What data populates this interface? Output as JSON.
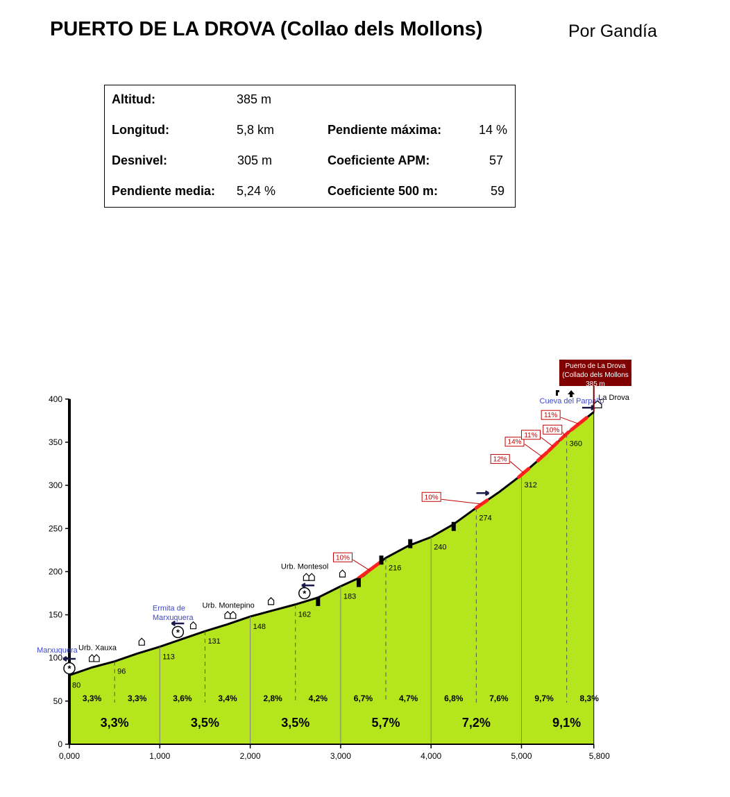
{
  "title": "PUERTO DE LA DROVA (Collao dels Mollons)",
  "subtitle": "Por Gandía",
  "stats": {
    "altitud_label": "Altitud:",
    "altitud": "385 m",
    "longitud_label": "Longitud:",
    "longitud": "5,8 km",
    "desnivel_label": "Desnivel:",
    "desnivel": "305 m",
    "pmedia_label": "Pendiente media:",
    "pmedia": "5,24 %",
    "pmax_label": "Pendiente máxima:",
    "pmax": "14 %",
    "apm_label": "Coeficiente APM:",
    "apm": "57",
    "c500_label": "Coeficiente 500 m:",
    "c500": "59"
  },
  "chart_data": {
    "type": "area",
    "x_unit": "km",
    "y_unit": "m",
    "xlim": [
      0,
      5.8
    ],
    "ylim": [
      0,
      400
    ],
    "x_ticks": [
      "0,000",
      "1,000",
      "2,000",
      "3,000",
      "4,000",
      "5,000",
      "5,800"
    ],
    "x_tick_values": [
      0,
      1,
      2,
      3,
      4,
      5,
      5.8
    ],
    "y_ticks": [
      0,
      50,
      100,
      150,
      200,
      250,
      300,
      350,
      400
    ],
    "fill_color": "#b5e61d",
    "steep_color": "#ff2020",
    "km_split_color": "#808080",
    "profile": [
      [
        0,
        80
      ],
      [
        0.25,
        89
      ],
      [
        0.5,
        96
      ],
      [
        0.75,
        105
      ],
      [
        1.0,
        113
      ],
      [
        1.25,
        122
      ],
      [
        1.5,
        131
      ],
      [
        1.75,
        139
      ],
      [
        2.0,
        148
      ],
      [
        2.25,
        155
      ],
      [
        2.5,
        162
      ],
      [
        2.75,
        170
      ],
      [
        3.0,
        183
      ],
      [
        3.25,
        195
      ],
      [
        3.5,
        216
      ],
      [
        3.75,
        230
      ],
      [
        4.0,
        240
      ],
      [
        4.25,
        255
      ],
      [
        4.5,
        274
      ],
      [
        4.75,
        292
      ],
      [
        5.0,
        312
      ],
      [
        5.25,
        335
      ],
      [
        5.5,
        360
      ],
      [
        5.8,
        385
      ]
    ],
    "point_labels": [
      {
        "x": 0,
        "y": 80,
        "text": "80"
      },
      {
        "x": 0.5,
        "y": 96,
        "text": "96"
      },
      {
        "x": 1.0,
        "y": 113,
        "text": "113"
      },
      {
        "x": 1.5,
        "y": 131,
        "text": "131"
      },
      {
        "x": 2.0,
        "y": 148,
        "text": "148"
      },
      {
        "x": 2.5,
        "y": 162,
        "text": "162"
      },
      {
        "x": 3.0,
        "y": 183,
        "text": "183"
      },
      {
        "x": 3.5,
        "y": 216,
        "text": "216"
      },
      {
        "x": 4.0,
        "y": 240,
        "text": "240"
      },
      {
        "x": 4.5,
        "y": 274,
        "text": "274"
      },
      {
        "x": 5.0,
        "y": 312,
        "text": "312"
      },
      {
        "x": 5.5,
        "y": 360,
        "text": "360"
      }
    ],
    "half_km_gradients": [
      "3,3%",
      "3,3%",
      "3,6%",
      "3,4%",
      "2,8%",
      "4,2%",
      "6,7%",
      "4,7%",
      "6,8%",
      "7,6%",
      "9,7%",
      "8,3%"
    ],
    "km_gradients": [
      "3,3%",
      "3,5%",
      "3,5%",
      "5,7%",
      "7,2%",
      "9,1%"
    ],
    "steep_segments": [
      {
        "x0": 3.2,
        "x1": 3.45,
        "label": "10%",
        "lx": 2.92,
        "ly": 217
      },
      {
        "x0": 4.5,
        "x1": 4.62,
        "label": "10%",
        "lx": 3.9,
        "ly": 287
      },
      {
        "x0": 4.97,
        "x1": 5.08,
        "label": "12%",
        "lx": 4.66,
        "ly": 331
      },
      {
        "x0": 5.18,
        "x1": 5.28,
        "label": "14%",
        "lx": 4.82,
        "ly": 351
      },
      {
        "x0": 5.3,
        "x1": 5.4,
        "label": "11%",
        "lx": 5.0,
        "ly": 359
      },
      {
        "x0": 5.43,
        "x1": 5.52,
        "label": "10%",
        "lx": 5.24,
        "ly": 365
      },
      {
        "x0": 5.55,
        "x1": 5.72,
        "label": "11%",
        "lx": 5.22,
        "ly": 382
      }
    ],
    "places": [
      {
        "text": "Marxuquera",
        "x": -0.36,
        "y": 106,
        "color": "#3f48cc"
      },
      {
        "text": "Urb. Xauxa",
        "x": 0.1,
        "y": 109,
        "color": "#000000"
      },
      {
        "text": "Ermita de",
        "x": 0.92,
        "y": 155,
        "color": "#3f48cc"
      },
      {
        "text": "Marxuquera",
        "x": 0.92,
        "y": 144,
        "color": "#3f48cc"
      },
      {
        "text": "Urb. Montepino",
        "x": 1.47,
        "y": 158,
        "color": "#000000"
      },
      {
        "text": "Urb. Montesol",
        "x": 2.34,
        "y": 203,
        "color": "#000000"
      },
      {
        "text": "Cueva del Parpalló",
        "x": 5.2,
        "y": 395,
        "color": "#3f48cc"
      },
      {
        "text": "La Drova",
        "x": 5.85,
        "y": 399,
        "color": "#000000"
      }
    ],
    "summit_sign": {
      "lines": [
        "Puerto de La Drova",
        "(Collado dels Mollons",
        "385 m"
      ],
      "bg": "#800000"
    }
  }
}
